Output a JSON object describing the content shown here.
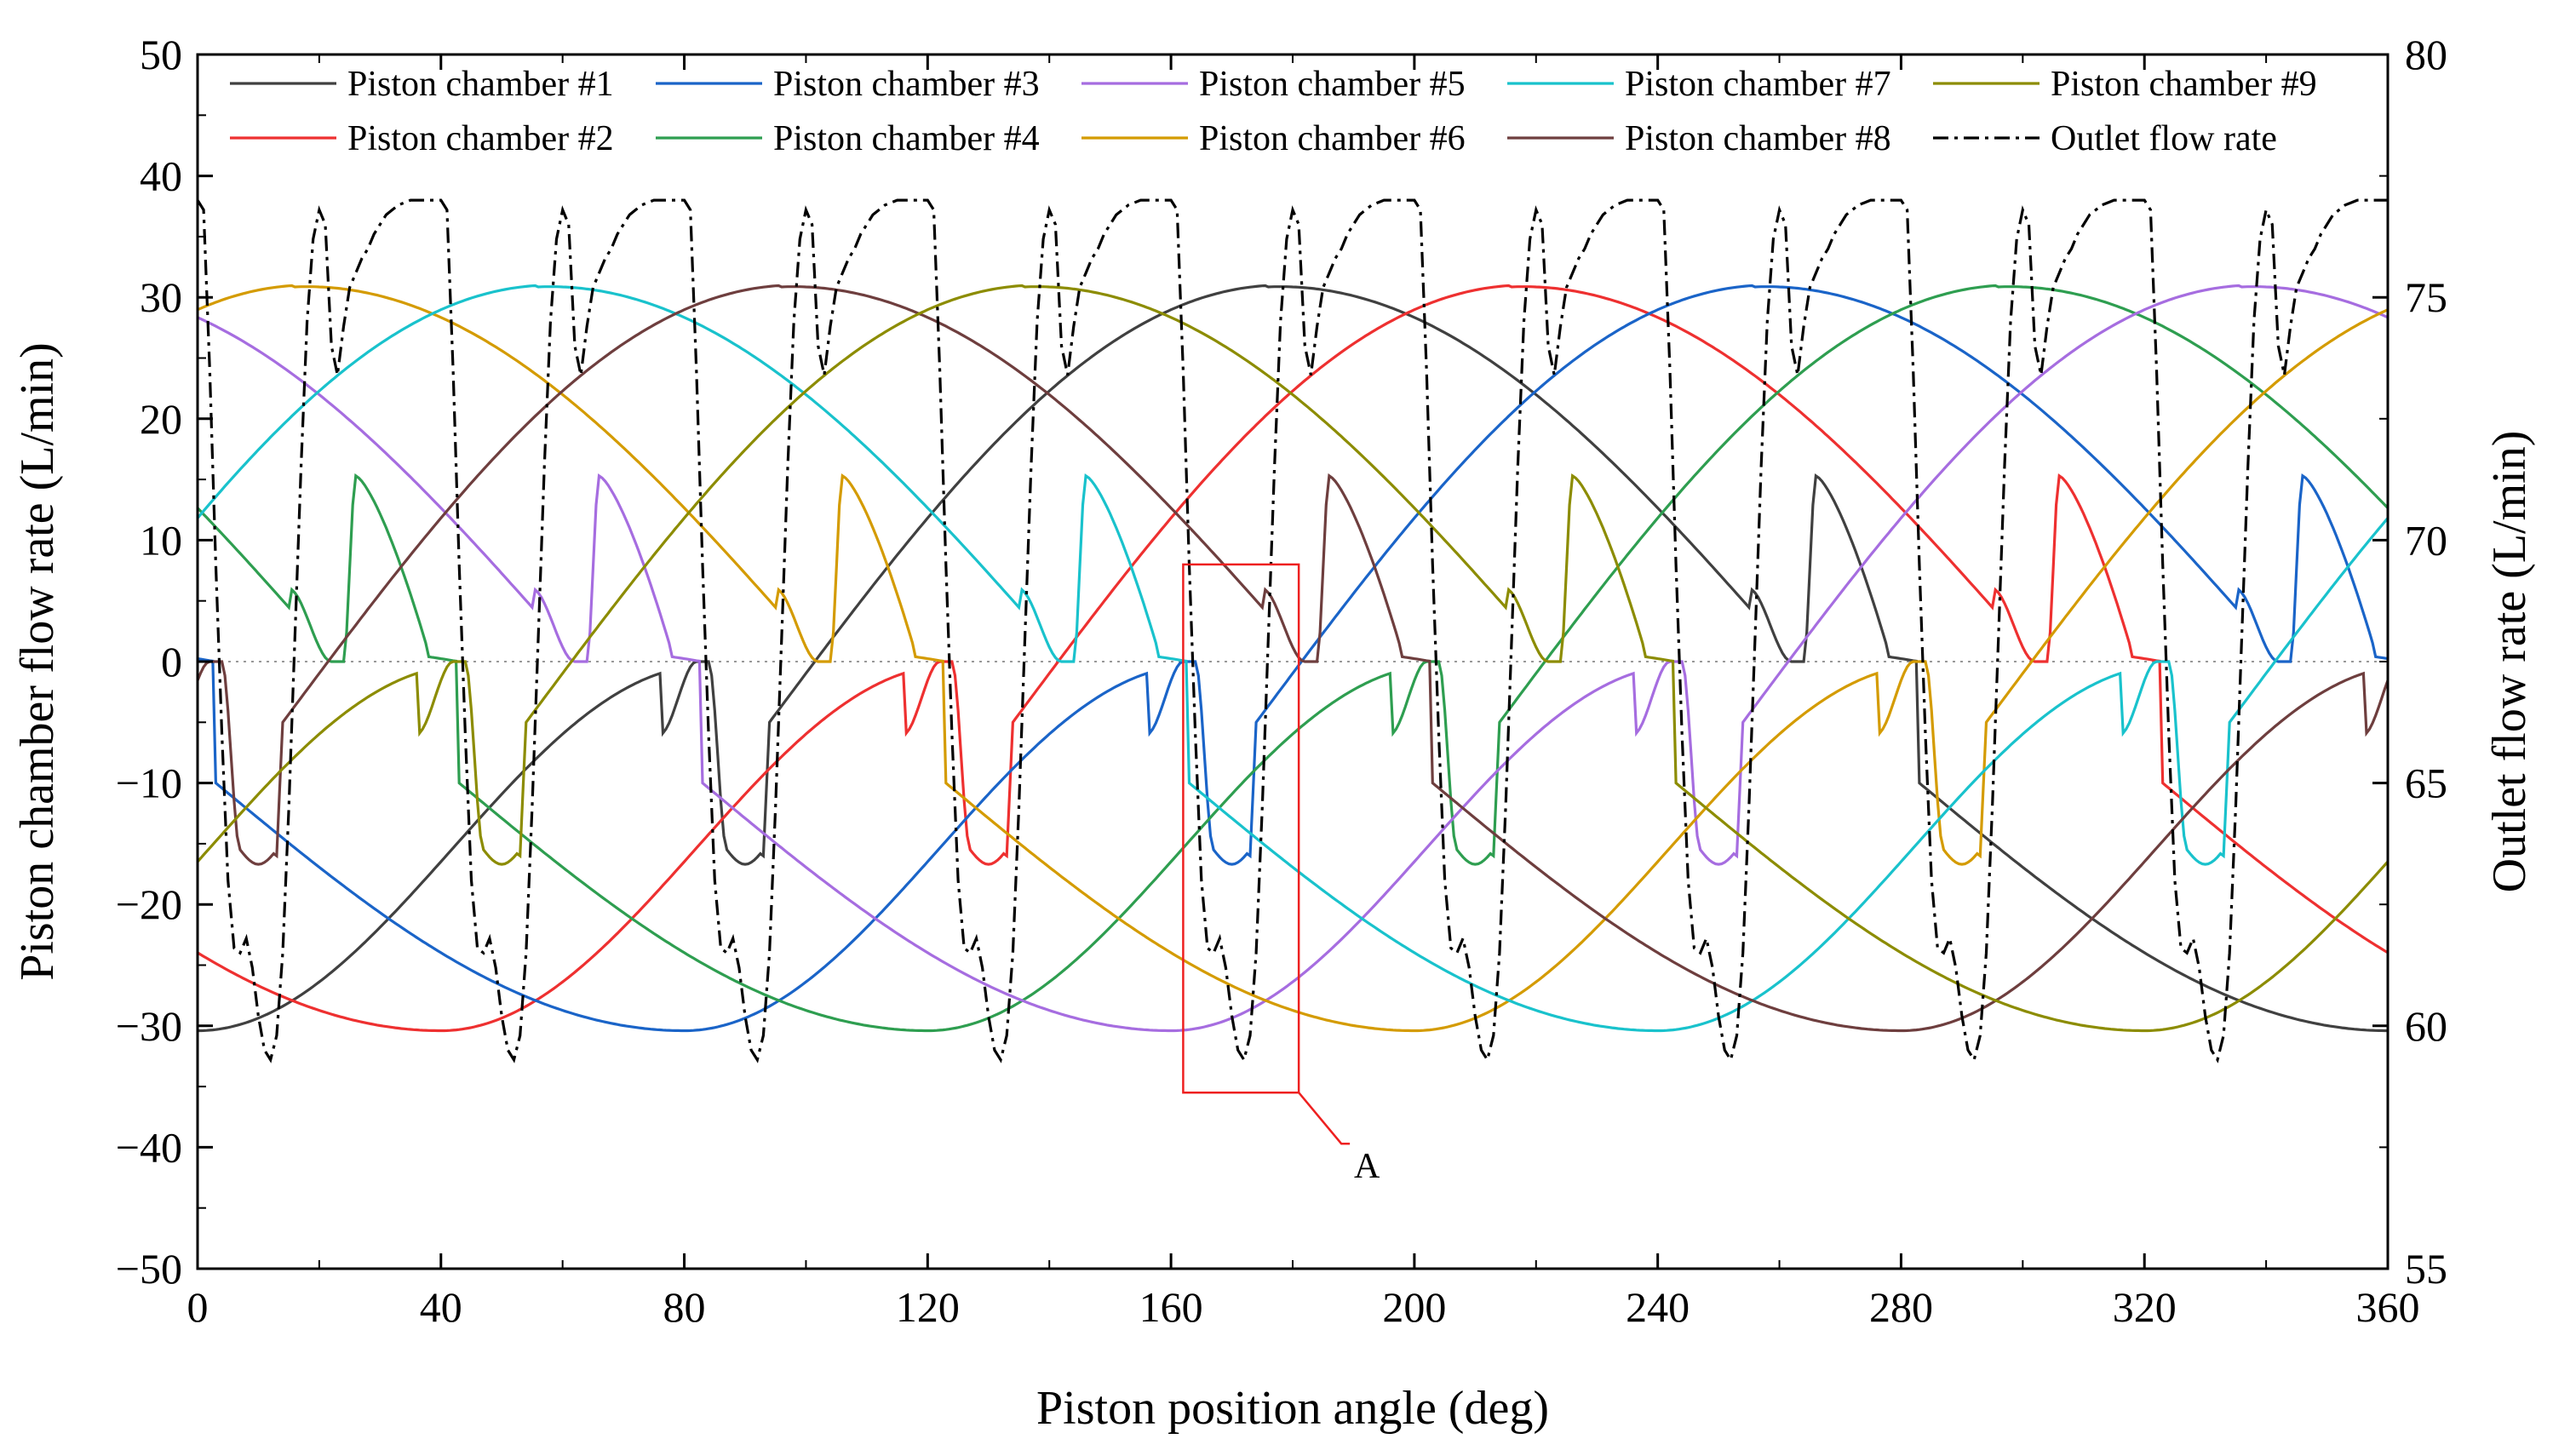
{
  "chart_data": {
    "type": "line",
    "xlabel": "Piston position angle (deg)",
    "ylabel": "Piston chamber flow rate (L/min)",
    "y2label": "Outlet flow rate (L/min)",
    "xlim": [
      0,
      360
    ],
    "ylim": [
      -50,
      50
    ],
    "y2lim": [
      55,
      80
    ],
    "xticks": [
      0,
      40,
      80,
      120,
      160,
      200,
      240,
      280,
      320,
      360
    ],
    "yticks": [
      -50,
      -40,
      -30,
      -20,
      -10,
      0,
      10,
      20,
      30,
      40,
      50
    ],
    "y2ticks": [
      55,
      60,
      65,
      70,
      75,
      80
    ],
    "xtick_labels": [
      "0",
      "40",
      "80",
      "120",
      "160",
      "200",
      "240",
      "280",
      "320",
      "360"
    ],
    "ytick_labels": [
      "−50",
      "−40",
      "−30",
      "−20",
      "−10",
      "0",
      "10",
      "20",
      "30",
      "40",
      "50"
    ],
    "y2tick_labels": [
      "55",
      "60",
      "65",
      "70",
      "75",
      "80"
    ],
    "legend": {
      "placement": "top",
      "rows": [
        [
          "Piston chamber #1",
          "Piston chamber #3",
          "Piston chamber #5",
          "Piston chamber #7",
          "Piston chamber #9"
        ],
        [
          "Piston chamber #2",
          "Piston chamber #4",
          "Piston chamber #6",
          "Piston chamber #8",
          "Outlet flow rate"
        ]
      ]
    },
    "chamber_model": {
      "count": 9,
      "phase_step_deg": 40,
      "discharge_peak": 31,
      "suction_peak": -30.4,
      "suction_start_value": -16,
      "discharge_start_value": 15.3,
      "note": "Each chamber follows the same curve shifted by 40 deg; chamber #1 peaks at ~178 deg (discharge) and ~0/360 deg (suction)."
    },
    "series": [
      {
        "name": "Piston chamber #1",
        "color": "#404040",
        "phase_deg": 0
      },
      {
        "name": "Piston chamber #2",
        "color": "#ee3030",
        "phase_deg": 320
      },
      {
        "name": "Piston chamber #3",
        "color": "#1a64c8",
        "phase_deg": 280
      },
      {
        "name": "Piston chamber #4",
        "color": "#2e9e50",
        "phase_deg": 240
      },
      {
        "name": "Piston chamber #5",
        "color": "#a66de0",
        "phase_deg": 200
      },
      {
        "name": "Piston chamber #6",
        "color": "#d49b00",
        "phase_deg": 160
      },
      {
        "name": "Piston chamber #7",
        "color": "#19c2cc",
        "phase_deg": 120
      },
      {
        "name": "Piston chamber #8",
        "color": "#6e3e3e",
        "phase_deg": 80
      },
      {
        "name": "Piston chamber #9",
        "color": "#8c8c00",
        "phase_deg": 40
      },
      {
        "name": "Outlet flow rate",
        "color": "#000000",
        "axis": "right",
        "dash": "dashdot",
        "period_deg": 40,
        "x_within_period": [
          0,
          1,
          2,
          3,
          4,
          5,
          6,
          7,
          8,
          9,
          10,
          11,
          12,
          13,
          14,
          15,
          16,
          17,
          18,
          19,
          20,
          21,
          22,
          23,
          24,
          25,
          26,
          27,
          28,
          29,
          30,
          31,
          32,
          33,
          34,
          35,
          36,
          37,
          38,
          39,
          40
        ],
        "y_within_period": [
          77.0,
          76.8,
          73.5,
          69.5,
          66.0,
          63.0,
          61.6,
          61.5,
          61.8,
          61.2,
          60.2,
          59.5,
          59.3,
          59.8,
          61.5,
          64.5,
          68.0,
          71.5,
          74.5,
          76.2,
          76.8,
          76.5,
          74.0,
          73.4,
          74.4,
          75.2,
          75.5,
          75.8,
          76.0,
          76.3,
          76.5,
          76.7,
          76.8,
          76.9,
          76.95,
          77.0,
          77.0,
          77.0,
          77.0,
          77.0,
          77.0
        ]
      }
    ],
    "annotations": [
      {
        "text": "A",
        "box_x": [
          162,
          181
        ],
        "box_y": [
          -35.5,
          8
        ]
      }
    ]
  }
}
